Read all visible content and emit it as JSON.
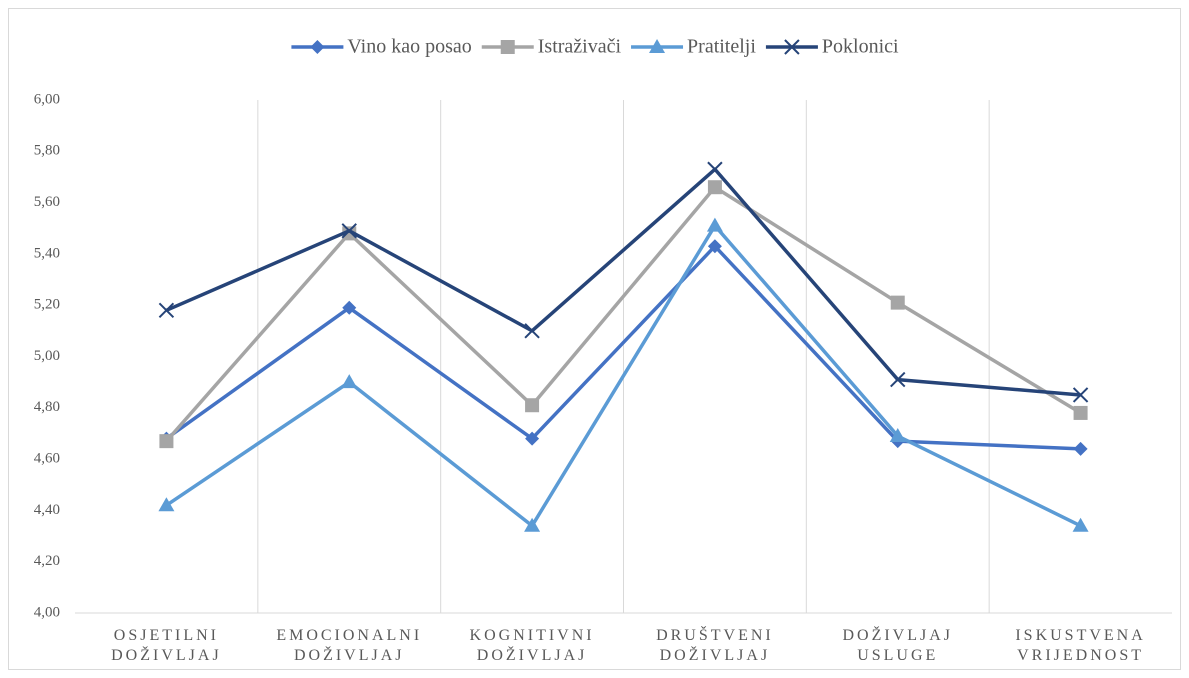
{
  "chart_data": {
    "type": "line",
    "categories": [
      "OSJETILNI DOŽIVLJAJ",
      "EMOCIONALNI DOŽIVLJAJ",
      "KOGNITIVNI DOŽIVLJAJ",
      "DRUŠTVENI DOŽIVLJAJ",
      "DOŽIVLJAJ USLUGE",
      "ISKUSTVENA VRIJEDNOST"
    ],
    "series": [
      {
        "name": "Vino kao posao",
        "color": "#4472c4",
        "marker": "diamond",
        "values": [
          4.68,
          5.19,
          4.68,
          5.43,
          4.67,
          4.64
        ]
      },
      {
        "name": "Istraživači",
        "color": "#a5a5a5",
        "marker": "square",
        "values": [
          4.67,
          5.48,
          4.81,
          5.66,
          5.21,
          4.78
        ]
      },
      {
        "name": "Pratitelji",
        "color": "#5b9bd5",
        "marker": "triangle",
        "values": [
          4.42,
          4.9,
          4.34,
          5.51,
          4.69,
          4.34
        ]
      },
      {
        "name": "Poklonici",
        "color": "#264478",
        "marker": "x",
        "values": [
          5.18,
          5.49,
          5.1,
          5.73,
          4.91,
          4.85
        ]
      }
    ],
    "ylim": [
      4,
      6
    ],
    "yticks": [
      {
        "value": 4,
        "label": "4,00"
      },
      {
        "value": 4.2,
        "label": "4,20"
      },
      {
        "value": 4.4,
        "label": "4,40"
      },
      {
        "value": 4.6,
        "label": "4,60"
      },
      {
        "value": 4.8,
        "label": "4,80"
      },
      {
        "value": 5,
        "label": "5,00"
      },
      {
        "value": 5.2,
        "label": "5,20"
      },
      {
        "value": 5.4,
        "label": "5,40"
      },
      {
        "value": 5.6,
        "label": "5,60"
      },
      {
        "value": 5.8,
        "label": "5,80"
      },
      {
        "value": 6,
        "label": "6,00"
      }
    ],
    "legend": "top",
    "grid": "vertical"
  }
}
